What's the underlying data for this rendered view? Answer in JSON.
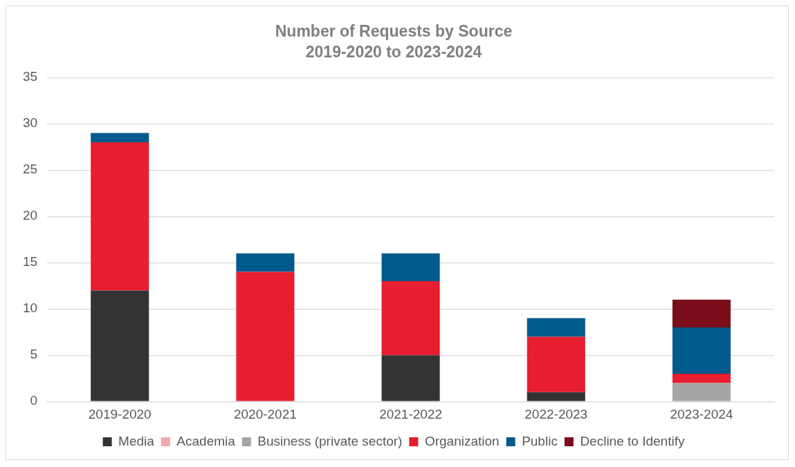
{
  "chart_data": {
    "type": "bar",
    "title": "Number of Requests by Source",
    "subtitle": "2019-2020 to 2023-2024",
    "categories": [
      "2019-2020",
      "2020-2021",
      "2021-2022",
      "2022-2023",
      "2023-2024"
    ],
    "stacked": true,
    "series": [
      {
        "name": "Media",
        "color": "#333333",
        "values": [
          12,
          0,
          5,
          1,
          0
        ]
      },
      {
        "name": "Academia",
        "color": "#f4a6ae",
        "values": [
          0,
          0,
          0,
          0,
          0
        ]
      },
      {
        "name": "Business (private sector)",
        "color": "#a5a5a5",
        "values": [
          0,
          0,
          0,
          0,
          2
        ]
      },
      {
        "name": "Organization",
        "color": "#e61e30",
        "values": [
          16,
          14,
          8,
          6,
          1
        ]
      },
      {
        "name": "Public",
        "color": "#005a8c",
        "values": [
          1,
          2,
          3,
          2,
          5
        ]
      },
      {
        "name": "Decline to Identify",
        "color": "#7a0e1a",
        "values": [
          0,
          0,
          0,
          0,
          3
        ]
      }
    ],
    "ylim": [
      0,
      35
    ],
    "yticks": [
      0,
      5,
      10,
      15,
      20,
      25,
      30,
      35
    ],
    "grid": "y",
    "legend": "bottom"
  }
}
